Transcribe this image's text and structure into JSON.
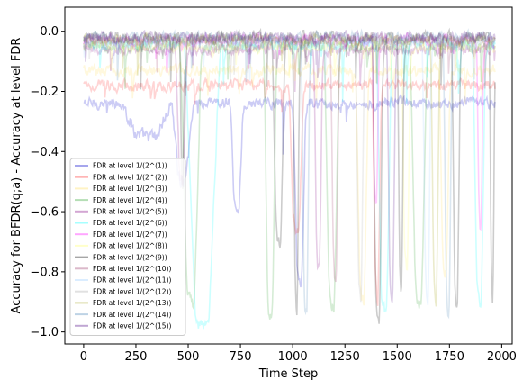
{
  "chart_data": {
    "type": "line",
    "xlabel": "Time Step",
    "ylabel": "Accuracy for BFDR(q;a) - Accuracy at level FDR",
    "xlim": [
      -90,
      2050
    ],
    "ylim": [
      -1.04,
      0.08
    ],
    "xticks": [
      0,
      250,
      500,
      750,
      1000,
      1250,
      1500,
      1750,
      2000
    ],
    "yticks": [
      0.0,
      -0.2,
      -0.4,
      -0.6,
      -0.8,
      -1.0
    ],
    "xtick_labels": [
      "0",
      "250",
      "500",
      "750",
      "1000",
      "1250",
      "1500",
      "1750",
      "2000"
    ],
    "ytick_labels": [
      "0.0",
      "−0.2",
      "−0.4",
      "−0.6",
      "−0.8",
      "−1.0"
    ],
    "grid": false,
    "legend_position": "lower-left",
    "n_points": 1970,
    "series": [
      {
        "name": "FDR at level 1/(2^(1))",
        "color": "#0000cc",
        "base": -0.24,
        "depth": 0.9,
        "dips": [
          [
            180,
            420,
            -0.35
          ],
          [
            420,
            520,
            -0.5
          ],
          [
            700,
            760,
            -0.6
          ],
          [
            1000,
            1060,
            -0.85
          ]
        ]
      },
      {
        "name": "FDR at level 1/(2^(2))",
        "color": "#ff2a2a",
        "base": -0.18,
        "depth": 0.4,
        "dips": [
          [
            980,
            1050,
            -0.65
          ],
          [
            1380,
            1420,
            -0.9
          ]
        ]
      },
      {
        "name": "FDR at level 1/(2^(3))",
        "color": "#ffdd55",
        "base": -0.13,
        "depth": 0.6,
        "dips": [
          [
            1300,
            1360,
            -0.9
          ],
          [
            1700,
            1750,
            -0.8
          ]
        ]
      },
      {
        "name": "FDR at level 1/(2^(4))",
        "color": "#2ca02c",
        "base": -0.05,
        "depth": 0.95,
        "dips": [
          [
            460,
            560,
            -0.9
          ],
          [
            860,
            920,
            -0.95
          ],
          [
            1150,
            1220,
            -0.92
          ],
          [
            1560,
            1640,
            -0.9
          ]
        ]
      },
      {
        "name": "FDR at level 1/(2^(5))",
        "color": "#800080",
        "base": -0.06,
        "depth": 0.7,
        "dips": [
          [
            440,
            490,
            -0.5
          ],
          [
            1100,
            1140,
            -0.8
          ]
        ]
      },
      {
        "name": "FDR at level 1/(2^(6))",
        "color": "#00ffff",
        "base": -0.04,
        "depth": 0.98,
        "dips": [
          [
            480,
            650,
            -0.97
          ],
          [
            1400,
            1470,
            -0.93
          ],
          [
            1860,
            1920,
            -0.9
          ]
        ]
      },
      {
        "name": "FDR at level 1/(2^(7))",
        "color": "#ff00ff",
        "base": -0.03,
        "depth": 0.5,
        "dips": [
          [
            1380,
            1410,
            -0.6
          ],
          [
            1880,
            1910,
            -0.7
          ]
        ]
      },
      {
        "name": "FDR at level 1/(2^(8))",
        "color": "#ffff66",
        "base": -0.05,
        "depth": 0.6,
        "dips": [
          [
            1520,
            1560,
            -0.8
          ]
        ]
      },
      {
        "name": "FDR at level 1/(2^(9))",
        "color": "#000000",
        "base": -0.02,
        "depth": 0.97,
        "dips": [
          [
            460,
            480,
            -0.6
          ],
          [
            900,
            960,
            -0.7
          ],
          [
            1000,
            1030,
            -0.95
          ],
          [
            1380,
            1430,
            -0.97
          ],
          [
            1500,
            1530,
            -0.9
          ],
          [
            1760,
            1800,
            -0.95
          ],
          [
            1940,
            1965,
            -0.97
          ]
        ]
      },
      {
        "name": "FDR at level 1/(2^(10))",
        "color": "#993366",
        "base": -0.03,
        "depth": 0.8,
        "dips": [
          [
            1180,
            1220,
            -0.85
          ]
        ]
      },
      {
        "name": "FDR at level 1/(2^(11))",
        "color": "#99ccff",
        "base": -0.04,
        "depth": 0.7,
        "dips": [
          [
            1620,
            1660,
            -0.9
          ]
        ]
      },
      {
        "name": "FDR at level 1/(2^(12))",
        "color": "#aaaaaa",
        "base": -0.03,
        "depth": 0.7,
        "dips": [
          [
            1300,
            1340,
            -0.9
          ]
        ]
      },
      {
        "name": "FDR at level 1/(2^(13))",
        "color": "#999900",
        "base": -0.03,
        "depth": 0.8,
        "dips": [
          [
            1660,
            1700,
            -0.9
          ]
        ]
      },
      {
        "name": "FDR at level 1/(2^(14))",
        "color": "#4682b4",
        "base": -0.02,
        "depth": 0.9,
        "dips": [
          [
            1040,
            1080,
            -0.95
          ],
          [
            1720,
            1760,
            -0.95
          ]
        ]
      },
      {
        "name": "FDR at level 1/(2^(15))",
        "color": "#4b0082",
        "base": -0.02,
        "depth": 0.9,
        "dips": [
          [
            1450,
            1490,
            -0.92
          ]
        ]
      }
    ]
  }
}
